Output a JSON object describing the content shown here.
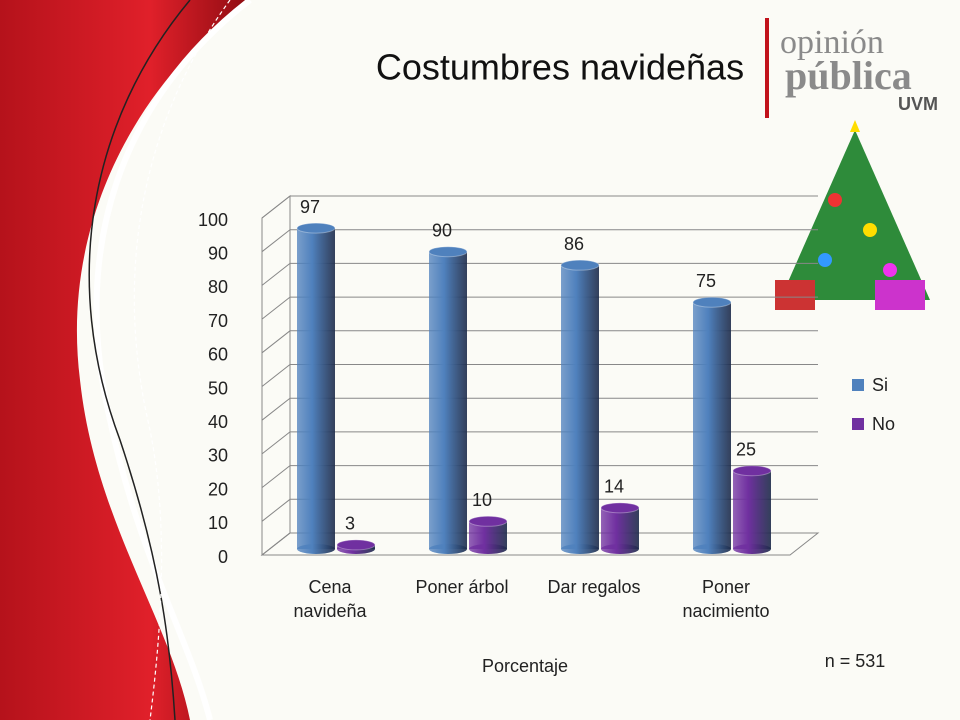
{
  "chart_data": {
    "type": "bar3d",
    "title": "Costumbres navideñas",
    "categories": [
      "Cena navideña",
      "Poner árbol",
      "Dar regalos",
      "Poner nacimiento"
    ],
    "series": [
      {
        "name": "Si",
        "color": "#4f81bd",
        "values": [
          97,
          90,
          86,
          75
        ]
      },
      {
        "name": "No",
        "color": "#7030a0",
        "values": [
          3,
          10,
          14,
          25
        ]
      }
    ],
    "ylim": [
      0,
      100
    ],
    "yticks": [
      0,
      10,
      20,
      30,
      40,
      50,
      60,
      70,
      80,
      90,
      100
    ],
    "grid": true,
    "x_label": "Porcentaje",
    "note": "n = 531",
    "legend": "right"
  },
  "logo": {
    "line1": "opinión",
    "line2": "pública",
    "line3": "UVM"
  }
}
